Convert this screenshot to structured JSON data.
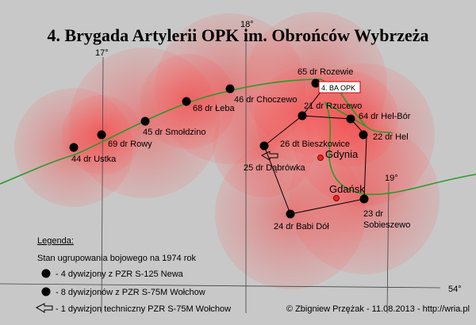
{
  "title": "4. Brygada Artylerii OPK im. Obrońców Wybrzeża",
  "grid_labels": {
    "lon_17": "17°",
    "lon_18": "18°",
    "lon_19": "19°",
    "lat_54": "54°"
  },
  "command_post": "4. BA OPK",
  "cities": [
    "Gdynia",
    "Gdańsk"
  ],
  "units": [
    "65 dr Rozewie",
    "46 dr Choczewo",
    "68 dr Łeba",
    "45 dr Smołdzino",
    "69 dr Rowy",
    "44 dr Ustka",
    "21 dr Rzucewo",
    "64 dr Hel-Bór",
    "22 dr Hel",
    "26 dt Bieszkowice",
    "25 dr Dąbrówka",
    "24 dr Babi Dół",
    "23 dr",
    "Sobieszewo"
  ],
  "legend": {
    "title": "Legenda:",
    "subtitle": "Stan ugrupowania bojowego na 1974 rok",
    "items": [
      "- 4 dywizjony z PZR S-125 Newa",
      "- 8 dywizjonów z PZR  S-75M Wołchow",
      "- 1 dywizjon techniczny PZR  S-75M Wołchow"
    ]
  },
  "credit": "© Zbigniew Przężak - 11.08.2013 - http://wria.pl"
}
